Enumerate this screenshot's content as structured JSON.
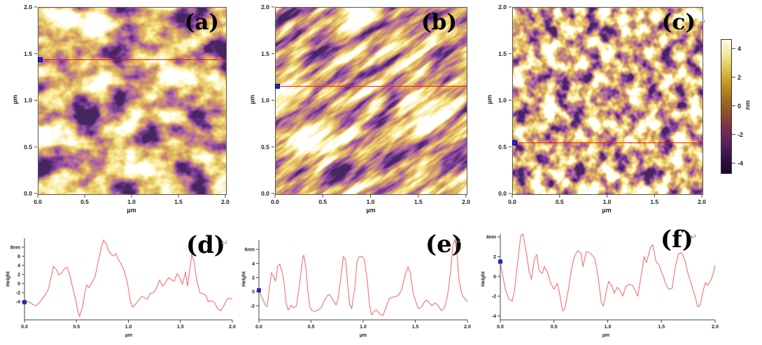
{
  "figure": {
    "background": "#ffffff",
    "scan_line_color": "#ff1400",
    "marker_color": "#2323c8",
    "curve_color": "#f47070",
    "axis_color": "#444444",
    "panels_axis": {
      "xlabel": "µm",
      "ylabel": "µm",
      "xticks": [
        {
          "v": 0,
          "label": "0.0"
        },
        {
          "v": 0.5,
          "label": "0.5"
        },
        {
          "v": 1,
          "label": "1.0"
        },
        {
          "v": 1.5,
          "label": "1.5"
        },
        {
          "v": 2,
          "label": "2.0"
        }
      ],
      "yticks": [
        {
          "v": 2,
          "label": "2.0"
        },
        {
          "v": 1.5,
          "label": "1.5"
        },
        {
          "v": 1,
          "label": "1.0"
        },
        {
          "v": 0.5,
          "label": "0.5"
        },
        {
          "v": 0,
          "label": "0.0"
        }
      ]
    },
    "afm_panels": [
      {
        "id": "a",
        "label": "(a)",
        "return_mark": "↵",
        "scan_line_um": 1.44,
        "texture": {
          "fx": 0.02,
          "fy": 0.024,
          "octaves": 4,
          "seed": 8,
          "rotate": 0
        }
      },
      {
        "id": "b",
        "label": "(b)",
        "return_mark": "↵",
        "scan_line_um": 1.16,
        "texture": {
          "fx": 0.013,
          "fy": 0.055,
          "octaves": 4,
          "seed": 13,
          "rotate": -36
        }
      },
      {
        "id": "c",
        "label": "(c)",
        "return_mark": "↵",
        "scan_line_um": 0.55,
        "texture": {
          "fx": 0.048,
          "fy": 0.044,
          "octaves": 3,
          "seed": 21,
          "rotate": 0
        }
      }
    ],
    "colorbar": {
      "label": "nm",
      "vmin": -4.65,
      "vmax": 4.65,
      "ticks": [
        {
          "v": 4,
          "label": "4"
        },
        {
          "v": 2,
          "label": "2"
        },
        {
          "v": 0,
          "label": "0"
        },
        {
          "v": -2,
          "label": "-2"
        },
        {
          "v": -4,
          "label": "-4"
        }
      ],
      "stops": [
        "#fdfbe6",
        "#f2e7a0",
        "#ddc148",
        "#c09624",
        "#a56c20",
        "#904c2c",
        "#782f52",
        "#571f5e",
        "#361048",
        "#17082a"
      ]
    }
  },
  "chart_data": [
    {
      "id": "d",
      "type": "line",
      "title_label": "(d)",
      "return_mark": "↵",
      "xlabel": "µm",
      "ylabel": "Height",
      "xlim": [
        0,
        2
      ],
      "ylim": [
        -8,
        10
      ],
      "xticks": [
        {
          "v": 0,
          "label": "0.0"
        },
        {
          "v": 0.5,
          "label": "0.5"
        },
        {
          "v": 1,
          "label": "1.0"
        },
        {
          "v": 1.5,
          "label": "1.5"
        },
        {
          "v": 2,
          "label": "2.0"
        }
      ],
      "yticks": [
        {
          "v": 8,
          "label": "8nm"
        },
        {
          "v": 6,
          "label": "6"
        },
        {
          "v": 4,
          "label": "4"
        },
        {
          "v": 2,
          "label": "2"
        },
        {
          "v": 0,
          "label": "0"
        },
        {
          "v": -2,
          "label": "-2"
        },
        {
          "v": -4,
          "label": "-4"
        }
      ],
      "points": [
        [
          0.0,
          -4.1
        ],
        [
          0.04,
          -4.0
        ],
        [
          0.08,
          -4.6
        ],
        [
          0.11,
          -4.9
        ],
        [
          0.14,
          -4.3
        ],
        [
          0.17,
          -3.4
        ],
        [
          0.2,
          -2.5
        ],
        [
          0.23,
          -1.2
        ],
        [
          0.26,
          1.8
        ],
        [
          0.28,
          3.8
        ],
        [
          0.31,
          3.0
        ],
        [
          0.33,
          1.9
        ],
        [
          0.36,
          2.4
        ],
        [
          0.39,
          3.4
        ],
        [
          0.41,
          3.6
        ],
        [
          0.44,
          1.6
        ],
        [
          0.46,
          -0.6
        ],
        [
          0.49,
          -3.2
        ],
        [
          0.51,
          -5.8
        ],
        [
          0.53,
          -7.3
        ],
        [
          0.56,
          -5.0
        ],
        [
          0.58,
          -2.2
        ],
        [
          0.6,
          -0.3
        ],
        [
          0.62,
          -0.9
        ],
        [
          0.65,
          0.2
        ],
        [
          0.68,
          1.6
        ],
        [
          0.71,
          4.8
        ],
        [
          0.74,
          8.0
        ],
        [
          0.76,
          9.6
        ],
        [
          0.79,
          8.6
        ],
        [
          0.81,
          7.2
        ],
        [
          0.84,
          6.3
        ],
        [
          0.86,
          6.1
        ],
        [
          0.88,
          6.6
        ],
        [
          0.9,
          5.4
        ],
        [
          0.93,
          4.3
        ],
        [
          0.96,
          2.8
        ],
        [
          0.99,
          0.2
        ],
        [
          1.02,
          -4.0
        ],
        [
          1.04,
          -5.2
        ],
        [
          1.07,
          -4.5
        ],
        [
          1.1,
          -3.6
        ],
        [
          1.13,
          -2.8
        ],
        [
          1.16,
          -3.2
        ],
        [
          1.18,
          -3.5
        ],
        [
          1.21,
          -2.2
        ],
        [
          1.24,
          -2.0
        ],
        [
          1.27,
          -1.0
        ],
        [
          1.3,
          0.8
        ],
        [
          1.33,
          -0.6
        ],
        [
          1.36,
          0.4
        ],
        [
          1.39,
          1.3
        ],
        [
          1.41,
          0.9
        ],
        [
          1.44,
          0.5
        ],
        [
          1.47,
          2.2
        ],
        [
          1.5,
          1.0
        ],
        [
          1.52,
          -0.2
        ],
        [
          1.55,
          2.5
        ],
        [
          1.57,
          -0.6
        ],
        [
          1.59,
          3.0
        ],
        [
          1.61,
          6.5
        ],
        [
          1.63,
          5.0
        ],
        [
          1.66,
          0.5
        ],
        [
          1.69,
          -2.1
        ],
        [
          1.72,
          -2.3
        ],
        [
          1.74,
          -2.4
        ],
        [
          1.77,
          -4.0
        ],
        [
          1.8,
          -3.8
        ],
        [
          1.83,
          -4.2
        ],
        [
          1.86,
          -5.6
        ],
        [
          1.89,
          -6.0
        ],
        [
          1.92,
          -4.8
        ],
        [
          1.95,
          -3.4
        ],
        [
          1.97,
          -3.2
        ],
        [
          2.0,
          -3.5
        ]
      ]
    },
    {
      "id": "e",
      "type": "line",
      "title_label": "(e)",
      "return_mark": "↵",
      "xlabel": "µm",
      "ylabel": "Height",
      "xlim": [
        0,
        2
      ],
      "ylim": [
        -4,
        7.3
      ],
      "xticks": [
        {
          "v": 0,
          "label": "0.0"
        },
        {
          "v": 0.5,
          "label": "0.5"
        },
        {
          "v": 1,
          "label": "1.0"
        },
        {
          "v": 1.5,
          "label": "1.5"
        },
        {
          "v": 2,
          "label": "2.0"
        }
      ],
      "yticks": [
        {
          "v": 6,
          "label": "6nm"
        },
        {
          "v": 4,
          "label": "4"
        },
        {
          "v": 2,
          "label": "2"
        },
        {
          "v": 0,
          "label": "0"
        },
        {
          "v": -2,
          "label": "-2"
        }
      ],
      "points": [
        [
          0.0,
          0.2
        ],
        [
          0.03,
          -0.8
        ],
        [
          0.06,
          -1.9
        ],
        [
          0.08,
          -2.1
        ],
        [
          0.1,
          0.5
        ],
        [
          0.12,
          2.7
        ],
        [
          0.14,
          2.2
        ],
        [
          0.16,
          1.5
        ],
        [
          0.18,
          3.6
        ],
        [
          0.2,
          3.9
        ],
        [
          0.22,
          2.9
        ],
        [
          0.24,
          1.5
        ],
        [
          0.26,
          -1.5
        ],
        [
          0.28,
          -2.6
        ],
        [
          0.31,
          -1.9
        ],
        [
          0.33,
          -2.3
        ],
        [
          0.36,
          -2.0
        ],
        [
          0.39,
          1.0
        ],
        [
          0.42,
          4.8
        ],
        [
          0.43,
          5.2
        ],
        [
          0.45,
          3.5
        ],
        [
          0.47,
          0.0
        ],
        [
          0.49,
          -2.2
        ],
        [
          0.51,
          -2.7
        ],
        [
          0.54,
          -2.8
        ],
        [
          0.57,
          -2.6
        ],
        [
          0.6,
          -2.2
        ],
        [
          0.63,
          -1.2
        ],
        [
          0.66,
          -0.5
        ],
        [
          0.68,
          -0.4
        ],
        [
          0.71,
          -1.2
        ],
        [
          0.74,
          -1.9
        ],
        [
          0.76,
          -1.0
        ],
        [
          0.79,
          2.5
        ],
        [
          0.81,
          5.0
        ],
        [
          0.83,
          4.6
        ],
        [
          0.85,
          1.5
        ],
        [
          0.87,
          -1.8
        ],
        [
          0.89,
          -2.4
        ],
        [
          0.92,
          0.5
        ],
        [
          0.94,
          4.2
        ],
        [
          0.96,
          4.9
        ],
        [
          0.99,
          5.0
        ],
        [
          1.01,
          4.6
        ],
        [
          1.04,
          1.5
        ],
        [
          1.06,
          -1.8
        ],
        [
          1.08,
          -3.3
        ],
        [
          1.11,
          -2.7
        ],
        [
          1.13,
          -2.6
        ],
        [
          1.16,
          -3.2
        ],
        [
          1.19,
          -3.4
        ],
        [
          1.22,
          -2.2
        ],
        [
          1.25,
          -1.0
        ],
        [
          1.28,
          -0.8
        ],
        [
          1.31,
          -0.7
        ],
        [
          1.34,
          -0.5
        ],
        [
          1.37,
          0.3
        ],
        [
          1.4,
          2.2
        ],
        [
          1.43,
          3.5
        ],
        [
          1.45,
          2.8
        ],
        [
          1.48,
          -0.2
        ],
        [
          1.51,
          -1.6
        ],
        [
          1.53,
          -2.4
        ],
        [
          1.56,
          -2.2
        ],
        [
          1.59,
          -1.4
        ],
        [
          1.61,
          -1.2
        ],
        [
          1.64,
          -1.7
        ],
        [
          1.66,
          -2.0
        ],
        [
          1.69,
          -1.6
        ],
        [
          1.72,
          -2.0
        ],
        [
          1.75,
          -2.7
        ],
        [
          1.78,
          -2.3
        ],
        [
          1.81,
          -0.5
        ],
        [
          1.84,
          3.0
        ],
        [
          1.86,
          6.5
        ],
        [
          1.88,
          7.4
        ],
        [
          1.9,
          5.5
        ],
        [
          1.92,
          1.5
        ],
        [
          1.95,
          -0.5
        ],
        [
          1.98,
          -1.1
        ],
        [
          2.0,
          -1.4
        ]
      ]
    },
    {
      "id": "f",
      "type": "line",
      "title_label": "(f)",
      "return_mark": "↵",
      "xlabel": "µm",
      "ylabel": "Height",
      "xlim": [
        0,
        2
      ],
      "ylim": [
        -4.4,
        4.3
      ],
      "xticks": [
        {
          "v": 0,
          "label": "0.0"
        },
        {
          "v": 0.5,
          "label": "0.5"
        },
        {
          "v": 1,
          "label": "1.0"
        },
        {
          "v": 1.5,
          "label": "1.5"
        },
        {
          "v": 2,
          "label": "2.0"
        }
      ],
      "yticks": [
        {
          "v": 4,
          "label": "4nm"
        },
        {
          "v": 2,
          "label": "2"
        },
        {
          "v": 0,
          "label": "0"
        },
        {
          "v": -2,
          "label": "-2"
        },
        {
          "v": -4,
          "label": "-4"
        }
      ],
      "points": [
        [
          0.0,
          1.5
        ],
        [
          0.02,
          0.2
        ],
        [
          0.05,
          -1.4
        ],
        [
          0.08,
          -2.3
        ],
        [
          0.11,
          -2.5
        ],
        [
          0.13,
          -1.6
        ],
        [
          0.16,
          1.3
        ],
        [
          0.19,
          4.1
        ],
        [
          0.21,
          4.3
        ],
        [
          0.24,
          2.6
        ],
        [
          0.27,
          0.4
        ],
        [
          0.29,
          -0.3
        ],
        [
          0.32,
          1.9
        ],
        [
          0.34,
          2.2
        ],
        [
          0.36,
          0.6
        ],
        [
          0.39,
          0.3
        ],
        [
          0.41,
          1.0
        ],
        [
          0.44,
          0.4
        ],
        [
          0.47,
          -0.7
        ],
        [
          0.5,
          -1.3
        ],
        [
          0.53,
          -0.7
        ],
        [
          0.55,
          -1.6
        ],
        [
          0.58,
          -3.5
        ],
        [
          0.6,
          -3.3
        ],
        [
          0.63,
          -1.6
        ],
        [
          0.66,
          0.6
        ],
        [
          0.69,
          2.0
        ],
        [
          0.72,
          2.6
        ],
        [
          0.75,
          2.4
        ],
        [
          0.77,
          1.0
        ],
        [
          0.8,
          2.5
        ],
        [
          0.83,
          2.4
        ],
        [
          0.86,
          2.1
        ],
        [
          0.88,
          1.8
        ],
        [
          0.91,
          0.0
        ],
        [
          0.94,
          -2.6
        ],
        [
          0.96,
          -3.0
        ],
        [
          0.99,
          -1.3
        ],
        [
          1.01,
          -0.5
        ],
        [
          1.04,
          -1.0
        ],
        [
          1.06,
          -1.7
        ],
        [
          1.09,
          -1.1
        ],
        [
          1.12,
          -1.5
        ],
        [
          1.14,
          -2.0
        ],
        [
          1.17,
          -1.0
        ],
        [
          1.2,
          -0.8
        ],
        [
          1.23,
          -0.9
        ],
        [
          1.26,
          -1.5
        ],
        [
          1.28,
          -2.0
        ],
        [
          1.31,
          0.0
        ],
        [
          1.34,
          2.0
        ],
        [
          1.36,
          1.4
        ],
        [
          1.4,
          3.0
        ],
        [
          1.42,
          3.2
        ],
        [
          1.45,
          1.5
        ],
        [
          1.48,
          1.1
        ],
        [
          1.52,
          -0.1
        ],
        [
          1.55,
          -1.0
        ],
        [
          1.57,
          -1.3
        ],
        [
          1.6,
          -1.2
        ],
        [
          1.63,
          1.0
        ],
        [
          1.66,
          2.3
        ],
        [
          1.69,
          2.4
        ],
        [
          1.72,
          1.6
        ],
        [
          1.75,
          0.2
        ],
        [
          1.78,
          -0.8
        ],
        [
          1.81,
          -1.9
        ],
        [
          1.84,
          -3.1
        ],
        [
          1.86,
          -2.9
        ],
        [
          1.89,
          -1.4
        ],
        [
          1.91,
          -0.6
        ],
        [
          1.93,
          -0.9
        ],
        [
          1.96,
          -0.4
        ],
        [
          1.98,
          0.2
        ],
        [
          2.0,
          1.1
        ]
      ]
    }
  ]
}
